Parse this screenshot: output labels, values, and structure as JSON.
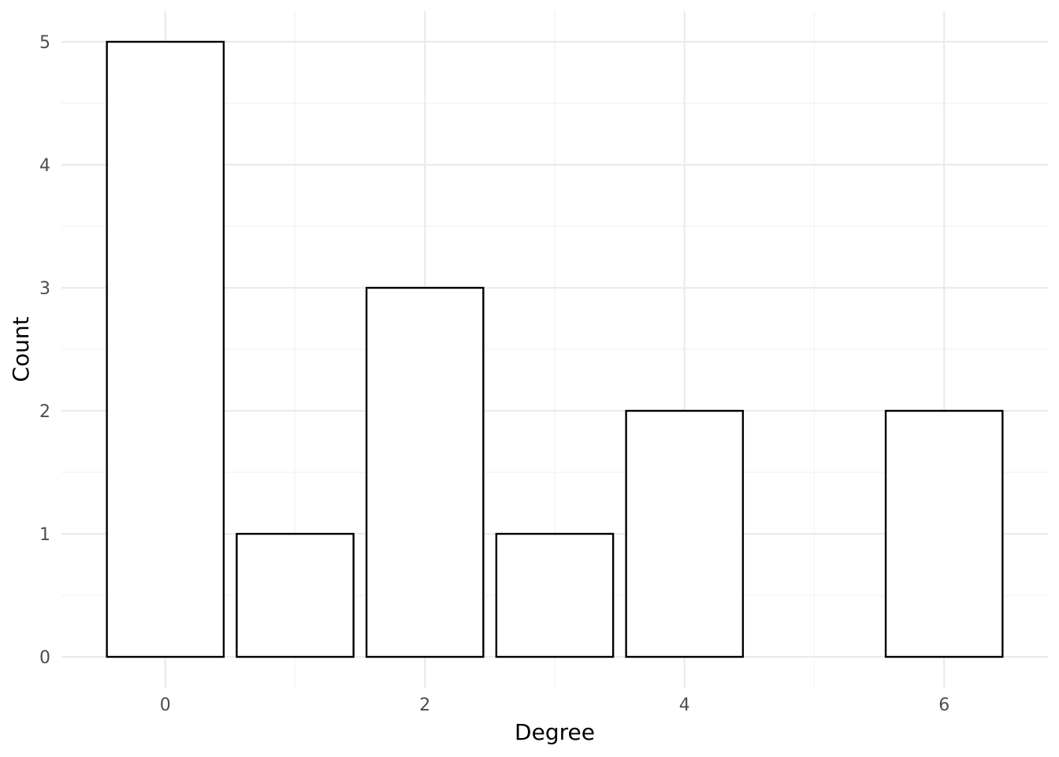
{
  "chart_data": {
    "type": "bar",
    "title": "",
    "xlabel": "Degree",
    "ylabel": "Count",
    "x": [
      0,
      1,
      2,
      3,
      4,
      6
    ],
    "values": [
      5,
      1,
      3,
      1,
      2,
      2
    ],
    "xlim": [
      -0.8,
      6.8
    ],
    "ylim": [
      -0.25,
      5.25
    ],
    "x_ticks": [
      0,
      2,
      4,
      6
    ],
    "x_tick_labels": [
      "0",
      "2",
      "4",
      "6"
    ],
    "y_ticks": [
      0,
      1,
      2,
      3,
      4,
      5
    ],
    "y_tick_labels": [
      "0",
      "1",
      "2",
      "3",
      "4",
      "5"
    ],
    "bar_width": 0.9,
    "grid": true,
    "legend": "none",
    "colors": {
      "bar_fill": "#ffffff",
      "bar_outline": "#000000",
      "grid": "#ebebeb"
    }
  }
}
